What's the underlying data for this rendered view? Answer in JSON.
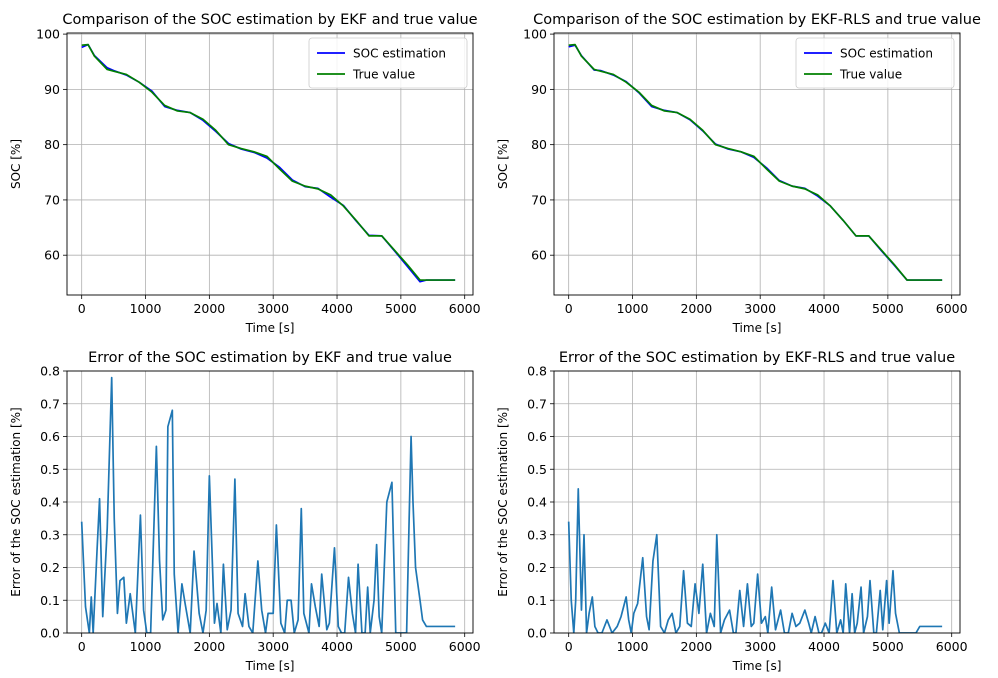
{
  "chart_data": [
    {
      "type": "line",
      "title": "Comparison of the SOC estimation by EKF and true value",
      "xlabel": "Time [s]",
      "ylabel": "SOC [%]",
      "xlim": [
        -230,
        6130
      ],
      "ylim": [
        52.8,
        100.2
      ],
      "xticks": [
        0,
        1000,
        2000,
        3000,
        4000,
        5000,
        6000
      ],
      "yticks": [
        60,
        70,
        80,
        90,
        100
      ],
      "grid": true,
      "legend": "top-right",
      "series": [
        {
          "name": "SOC estimation",
          "color": "#0000ff",
          "x": [
            0,
            100,
            200,
            400,
            500,
            700,
            900,
            1100,
            1300,
            1500,
            1700,
            1900,
            2100,
            2300,
            2500,
            2700,
            2900,
            3100,
            3300,
            3500,
            3700,
            3900,
            4100,
            4300,
            4500,
            4700,
            4900,
            5100,
            5300,
            5400,
            5850
          ],
          "y": [
            97.6,
            98.1,
            96.1,
            93.9,
            93.4,
            92.6,
            91.3,
            89.7,
            86.9,
            86.2,
            85.8,
            84.4,
            82.4,
            80.2,
            79.2,
            78.6,
            77.6,
            75.9,
            73.6,
            72.4,
            72.1,
            70.5,
            69.0,
            66.2,
            63.6,
            63.5,
            60.8,
            58.0,
            55.2,
            55.5,
            55.5
          ]
        },
        {
          "name": "True value",
          "color": "#008000",
          "x": [
            0,
            100,
            200,
            400,
            500,
            700,
            900,
            1100,
            1300,
            1500,
            1700,
            1900,
            2100,
            2300,
            2500,
            2700,
            2900,
            3100,
            3300,
            3500,
            3700,
            3900,
            4100,
            4300,
            4500,
            4700,
            4900,
            5100,
            5300,
            5400,
            5850
          ],
          "y": [
            98.0,
            98.1,
            96.0,
            93.6,
            93.3,
            92.7,
            91.3,
            89.5,
            87.1,
            86.1,
            85.8,
            84.6,
            82.6,
            80.0,
            79.3,
            78.7,
            77.9,
            75.6,
            73.4,
            72.5,
            72.0,
            70.9,
            68.9,
            66.3,
            63.5,
            63.5,
            60.9,
            58.3,
            55.5,
            55.5,
            55.5
          ]
        }
      ]
    },
    {
      "type": "line",
      "title": "Comparison of the SOC estimation by EKF-RLS and true value",
      "xlabel": "Time [s]",
      "ylabel": "SOC [%]",
      "xlim": [
        -230,
        6130
      ],
      "ylim": [
        52.8,
        100.2
      ],
      "xticks": [
        0,
        1000,
        2000,
        3000,
        4000,
        5000,
        6000
      ],
      "yticks": [
        60,
        70,
        80,
        90,
        100
      ],
      "grid": true,
      "legend": "top-right",
      "series": [
        {
          "name": "SOC estimation",
          "color": "#0000ff",
          "x": [
            0,
            100,
            200,
            400,
            500,
            700,
            900,
            1100,
            1300,
            1500,
            1700,
            1900,
            2100,
            2300,
            2500,
            2700,
            2900,
            3100,
            3300,
            3500,
            3700,
            3900,
            4100,
            4300,
            4500,
            4700,
            4900,
            5100,
            5300,
            5400,
            5850
          ],
          "y": [
            97.7,
            98.0,
            96.1,
            93.5,
            93.4,
            92.6,
            91.4,
            89.4,
            86.9,
            86.2,
            85.8,
            84.5,
            82.5,
            80.1,
            79.2,
            78.7,
            77.7,
            75.8,
            73.5,
            72.5,
            72.1,
            70.7,
            68.9,
            66.3,
            63.5,
            63.5,
            60.8,
            58.2,
            55.5,
            55.5,
            55.5
          ]
        },
        {
          "name": "True value",
          "color": "#008000",
          "x": [
            0,
            100,
            200,
            400,
            500,
            700,
            900,
            1100,
            1300,
            1500,
            1700,
            1900,
            2100,
            2300,
            2500,
            2700,
            2900,
            3100,
            3300,
            3500,
            3700,
            3900,
            4100,
            4300,
            4500,
            4700,
            4900,
            5100,
            5300,
            5400,
            5850
          ],
          "y": [
            98.0,
            98.1,
            96.0,
            93.6,
            93.3,
            92.7,
            91.3,
            89.5,
            87.1,
            86.1,
            85.8,
            84.6,
            82.6,
            80.0,
            79.3,
            78.7,
            77.9,
            75.6,
            73.4,
            72.5,
            72.0,
            70.9,
            68.9,
            66.3,
            63.5,
            63.5,
            60.9,
            58.3,
            55.5,
            55.5,
            55.5
          ]
        }
      ]
    },
    {
      "type": "line",
      "title": "Error of the SOC estimation by EKF and true value",
      "xlabel": "Time [s]",
      "ylabel": "Error of the SOC estimation [%]",
      "xlim": [
        -230,
        6130
      ],
      "ylim": [
        0,
        0.8
      ],
      "xticks": [
        0,
        1000,
        2000,
        3000,
        4000,
        5000,
        6000
      ],
      "yticks": [
        0.0,
        0.1,
        0.2,
        0.3,
        0.4,
        0.5,
        0.6,
        0.7,
        0.8
      ],
      "grid": true,
      "series": [
        {
          "color": "#1f77b4",
          "x": [
            0,
            60,
            120,
            150,
            180,
            240,
            280,
            330,
            400,
            470,
            510,
            560,
            600,
            660,
            700,
            760,
            840,
            920,
            970,
            1020,
            1080,
            1170,
            1220,
            1270,
            1320,
            1350,
            1420,
            1450,
            1510,
            1570,
            1620,
            1700,
            1760,
            1840,
            1900,
            1950,
            2000,
            2080,
            2120,
            2180,
            2220,
            2280,
            2340,
            2400,
            2450,
            2520,
            2560,
            2620,
            2680,
            2760,
            2820,
            2880,
            2920,
            3000,
            3050,
            3120,
            3180,
            3220,
            3280,
            3330,
            3390,
            3440,
            3480,
            3560,
            3600,
            3660,
            3720,
            3760,
            3840,
            3880,
            3960,
            4020,
            4070,
            4120,
            4180,
            4240,
            4290,
            4330,
            4390,
            4440,
            4480,
            4520,
            4580,
            4620,
            4660,
            4700,
            4780,
            4860,
            4920,
            5020,
            5090,
            5130,
            5160,
            5190,
            5230,
            5300,
            5340,
            5400,
            5500,
            5650,
            5850
          ],
          "y": [
            0.34,
            0.08,
            0.0,
            0.11,
            0.0,
            0.25,
            0.41,
            0.05,
            0.32,
            0.78,
            0.35,
            0.06,
            0.16,
            0.17,
            0.03,
            0.12,
            0.0,
            0.36,
            0.07,
            0.0,
            0.0,
            0.57,
            0.22,
            0.04,
            0.07,
            0.63,
            0.68,
            0.18,
            0.0,
            0.15,
            0.09,
            0.0,
            0.25,
            0.06,
            0.0,
            0.07,
            0.48,
            0.03,
            0.09,
            0.0,
            0.21,
            0.01,
            0.07,
            0.47,
            0.06,
            0.02,
            0.12,
            0.02,
            0.0,
            0.22,
            0.07,
            0.0,
            0.06,
            0.06,
            0.33,
            0.03,
            0.0,
            0.1,
            0.1,
            0.0,
            0.04,
            0.38,
            0.06,
            0.0,
            0.15,
            0.08,
            0.02,
            0.18,
            0.01,
            0.03,
            0.26,
            0.02,
            0.0,
            0.0,
            0.17,
            0.06,
            0.0,
            0.21,
            0.0,
            0.0,
            0.14,
            0.0,
            0.1,
            0.27,
            0.05,
            0.0,
            0.4,
            0.46,
            0.0,
            0.0,
            0.0,
            0.35,
            0.6,
            0.4,
            0.2,
            0.1,
            0.04,
            0.02,
            0.02,
            0.02,
            0.02
          ]
        }
      ]
    },
    {
      "type": "line",
      "title": "Error of the SOC estimation by EKF-RLS and true value",
      "xlabel": "Time [s]",
      "ylabel": "Error of the SOC estimation [%]",
      "xlim": [
        -230,
        6130
      ],
      "ylim": [
        0,
        0.8
      ],
      "xticks": [
        0,
        1000,
        2000,
        3000,
        4000,
        5000,
        6000
      ],
      "yticks": [
        0.0,
        0.1,
        0.2,
        0.3,
        0.4,
        0.5,
        0.6,
        0.7,
        0.8
      ],
      "grid": true,
      "series": [
        {
          "color": "#1f77b4",
          "x": [
            0,
            40,
            80,
            110,
            150,
            200,
            240,
            280,
            320,
            370,
            410,
            460,
            520,
            600,
            680,
            760,
            820,
            900,
            940,
            980,
            1020,
            1080,
            1160,
            1220,
            1260,
            1320,
            1380,
            1440,
            1500,
            1560,
            1620,
            1680,
            1740,
            1800,
            1860,
            1920,
            1980,
            2040,
            2100,
            2160,
            2220,
            2280,
            2320,
            2380,
            2440,
            2520,
            2580,
            2620,
            2680,
            2740,
            2800,
            2860,
            2900,
            2960,
            3020,
            3080,
            3120,
            3180,
            3240,
            3320,
            3380,
            3440,
            3500,
            3560,
            3620,
            3700,
            3760,
            3800,
            3860,
            3920,
            3960,
            4020,
            4080,
            4140,
            4200,
            4260,
            4300,
            4340,
            4400,
            4440,
            4480,
            4520,
            4580,
            4620,
            4680,
            4720,
            4780,
            4820,
            4880,
            4920,
            4980,
            5020,
            5080,
            5120,
            5180,
            5230,
            5300,
            5380,
            5440,
            5500,
            5650,
            5850
          ],
          "y": [
            0.34,
            0.1,
            0.0,
            0.1,
            0.44,
            0.07,
            0.3,
            0.0,
            0.06,
            0.11,
            0.02,
            0.0,
            0.0,
            0.04,
            0.0,
            0.02,
            0.05,
            0.11,
            0.04,
            0.0,
            0.06,
            0.09,
            0.23,
            0.05,
            0.01,
            0.22,
            0.3,
            0.02,
            0.0,
            0.04,
            0.06,
            0.0,
            0.02,
            0.19,
            0.03,
            0.02,
            0.15,
            0.06,
            0.21,
            0.0,
            0.06,
            0.02,
            0.3,
            0.0,
            0.04,
            0.07,
            0.0,
            0.0,
            0.13,
            0.02,
            0.15,
            0.02,
            0.03,
            0.18,
            0.03,
            0.05,
            0.0,
            0.14,
            0.01,
            0.07,
            0.0,
            0.0,
            0.06,
            0.02,
            0.03,
            0.07,
            0.03,
            0.0,
            0.05,
            0.0,
            0.0,
            0.03,
            0.0,
            0.16,
            0.0,
            0.04,
            0.0,
            0.15,
            0.0,
            0.12,
            0.0,
            0.03,
            0.14,
            0.0,
            0.05,
            0.16,
            0.0,
            0.0,
            0.13,
            0.01,
            0.16,
            0.03,
            0.19,
            0.06,
            0.0,
            0.0,
            0.0,
            0.0,
            0.0,
            0.02,
            0.02,
            0.02
          ]
        }
      ]
    }
  ]
}
